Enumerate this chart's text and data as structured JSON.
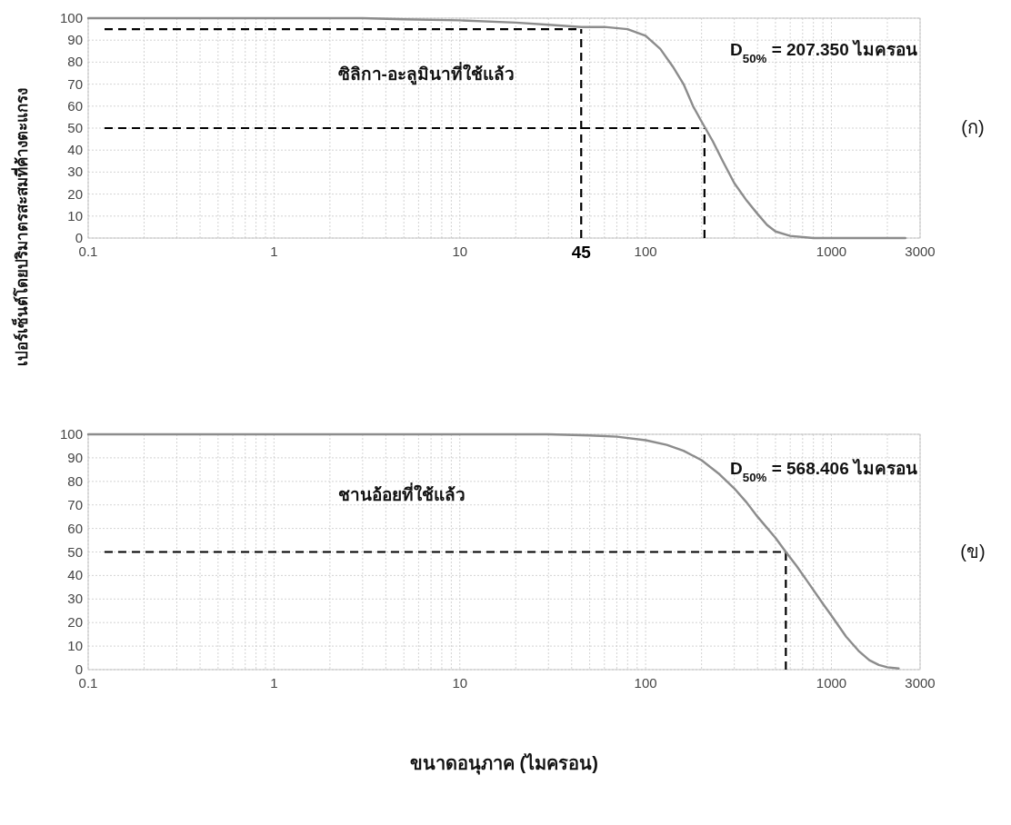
{
  "chart_data": [
    {
      "type": "line",
      "ylabel": "เปอร์เซ็นต์โดยปริมาตรสะสมที่ค้างตะแกรง",
      "annotations": [
        "D$_{50%}$ = 207.350 ไมครอน",
        "(ก)",
        "ซิลิกา-อะลูมินาที่ใช้แล้ว"
      ],
      "log": "x",
      "xlim": [
        0.1,
        3000
      ],
      "ylim": [
        0,
        100
      ],
      "xticks": [
        0.1,
        1,
        10,
        100,
        1000,
        3000
      ],
      "yticks": [
        0,
        10,
        20,
        30,
        40,
        50,
        60,
        70,
        80,
        90,
        100
      ],
      "grid": true,
      "marker": "none",
      "line_style": "solid",
      "series": [
        {
          "color": "#8c8c8c",
          "x": [
            0.1,
            0.5,
            1,
            3,
            5,
            10,
            20,
            30,
            45,
            60,
            80,
            100,
            120,
            140,
            160,
            180,
            200,
            230,
            260,
            300,
            350,
            400,
            450,
            500,
            600,
            800,
            1200,
            2500
          ],
          "values": [
            100,
            100,
            100,
            100,
            99.5,
            99,
            98,
            97,
            96,
            96,
            95,
            92,
            86,
            78,
            70,
            60,
            53,
            44,
            35,
            25,
            17,
            11,
            6,
            3,
            1,
            0,
            0,
            0
          ]
        }
      ],
      "ref_lines": [
        {
          "axis": "y",
          "value": 95,
          "line_style": "dashed",
          "color": "#000000"
        },
        {
          "axis": "x",
          "value": 45,
          "label": "45",
          "line_style": "dashed",
          "color": "#000000"
        },
        {
          "axis": "y",
          "value": 50,
          "line_style": "dashed",
          "color": "#000000"
        },
        {
          "axis": "x",
          "value": 207.35,
          "line_style": "dashed",
          "color": "#000000"
        }
      ]
    },
    {
      "type": "line",
      "xlabel": "ขนาดอนุภาค (ไมครอน)",
      "annotations": [
        "D$_{50%}$ = 568.406 ไมครอน",
        "(ข)",
        "ชานอ้อยที่ใช้แล้ว"
      ],
      "log": "x",
      "xlim": [
        0.1,
        3000
      ],
      "ylim": [
        0,
        100
      ],
      "xticks": [
        0.1,
        1,
        10,
        100,
        1000,
        3000
      ],
      "yticks": [
        0,
        10,
        20,
        30,
        40,
        50,
        60,
        70,
        80,
        90,
        100
      ],
      "grid": true,
      "marker": "none",
      "line_style": "solid",
      "series": [
        {
          "color": "#8c8c8c",
          "x": [
            0.1,
            1,
            10,
            30,
            50,
            70,
            100,
            130,
            160,
            200,
            250,
            300,
            350,
            400,
            500,
            568.406,
            650,
            750,
            900,
            1000,
            1200,
            1400,
            1600,
            1800,
            2000,
            2300
          ],
          "values": [
            100,
            100,
            100,
            100,
            99.5,
            99,
            97.5,
            95.5,
            93,
            89,
            83,
            77,
            71,
            65,
            56,
            50,
            44,
            37,
            28,
            23,
            14,
            8,
            4,
            2,
            1,
            0.5
          ]
        }
      ],
      "ref_lines": [
        {
          "axis": "y",
          "value": 50,
          "line_style": "dashed",
          "color": "#000000"
        },
        {
          "axis": "x",
          "value": 568.406,
          "line_style": "dashed",
          "color": "#000000"
        }
      ]
    }
  ]
}
